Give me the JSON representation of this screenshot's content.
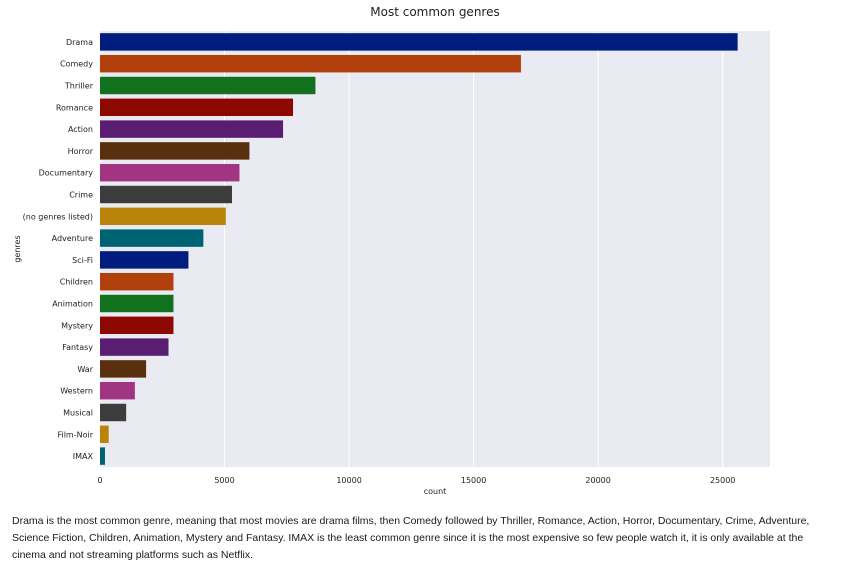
{
  "chart_data": {
    "type": "bar",
    "orientation": "horizontal",
    "title": "Most common genres",
    "xlabel": "count",
    "ylabel": "genres",
    "categories": [
      "Drama",
      "Comedy",
      "Thriller",
      "Romance",
      "Action",
      "Horror",
      "Documentary",
      "Crime",
      "(no genres listed)",
      "Adventure",
      "Sci-Fi",
      "Children",
      "Animation",
      "Mystery",
      "Fantasy",
      "War",
      "Western",
      "Musical",
      "Film-Noir",
      "IMAX"
    ],
    "values": [
      25600,
      16900,
      8650,
      7750,
      7350,
      6000,
      5600,
      5300,
      5050,
      4150,
      3550,
      2950,
      2950,
      2950,
      2750,
      1850,
      1400,
      1050,
      350,
      200
    ],
    "colors": [
      "#001c7f",
      "#b1400d",
      "#12711c",
      "#8c0800",
      "#591e71",
      "#592f0d",
      "#a23582",
      "#3c3c3c",
      "#b8850a",
      "#006374",
      "#001c7f",
      "#b1400d",
      "#12711c",
      "#8c0800",
      "#591e71",
      "#592f0d",
      "#a23582",
      "#3c3c3c",
      "#b8850a",
      "#006374"
    ],
    "xlim": [
      0,
      26900
    ],
    "xticks": [
      0,
      5000,
      10000,
      15000,
      20000,
      25000
    ],
    "grid": true,
    "plot_background": "#eaeaf2"
  },
  "caption": "Drama is the most common genre, meaning that most movies are drama films, then Comedy followed by Thriller, Romance, Action, Horror, Documentary, Crime, Adventure, Science Fiction, Children, Animation, Mystery and Fantasy. IMAX is the least common genre since it is the most expensive so few people watch it, it is only available at the cinema and not streaming platforms such as Netflix."
}
